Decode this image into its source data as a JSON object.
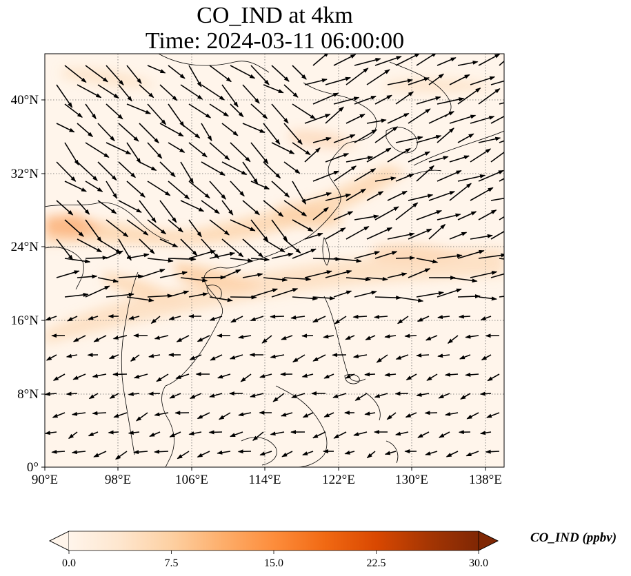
{
  "title": {
    "line1": "CO_IND at 4km",
    "line2": "Time: 2024-03-11 06:00:00"
  },
  "map": {
    "lon_range": [
      90,
      140
    ],
    "lat_range": [
      0,
      45
    ],
    "x_ticks": [
      "90°E",
      "98°E",
      "106°E",
      "114°E",
      "122°E",
      "130°E",
      "138°E"
    ],
    "y_ticks": [
      "0°",
      "8°N",
      "16°N",
      "24°N",
      "32°N",
      "40°N"
    ],
    "gridlines": true,
    "field_colors": {
      "low": "#fff5eb",
      "mid": "#fdd2a5",
      "high": "#fcb47d"
    },
    "coastline_color": "#000000",
    "vector_color": "#000000"
  },
  "colorbar": {
    "label": "CO_IND (ppbv)",
    "ticks": [
      "0.0",
      "7.5",
      "15.0",
      "22.5",
      "30.0"
    ],
    "range": [
      0,
      30
    ],
    "colormap": [
      "#fff5eb",
      "#fee6ce",
      "#fdd0a2",
      "#fdae6b",
      "#fd8d3c",
      "#f16913",
      "#d94801",
      "#a63603",
      "#7f2704"
    ],
    "extend": "both"
  }
}
